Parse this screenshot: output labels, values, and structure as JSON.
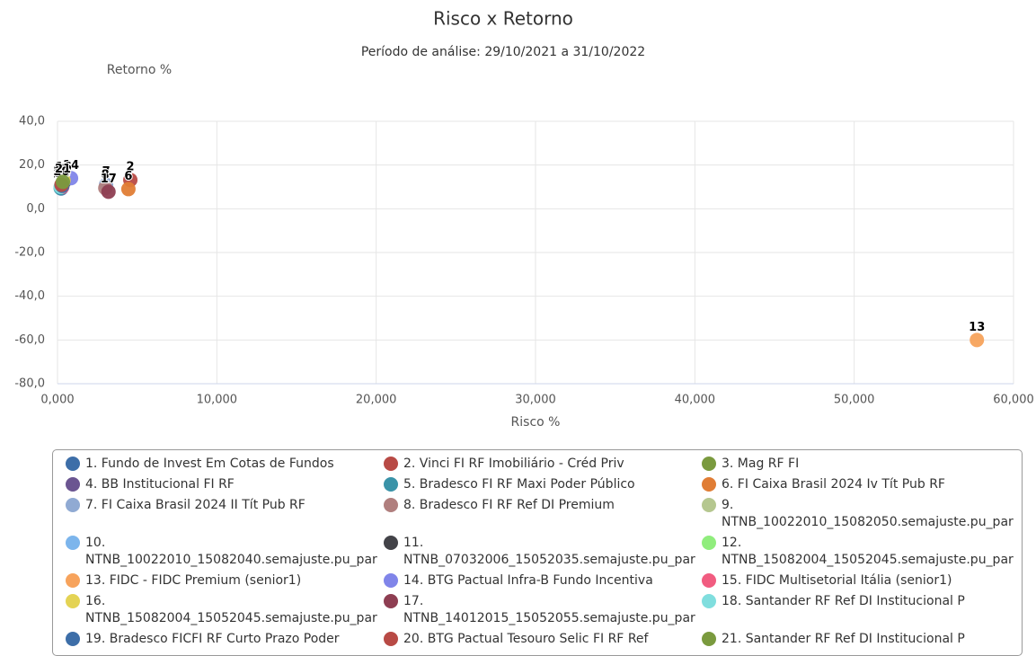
{
  "chart_data": {
    "type": "scatter",
    "title": "Risco x Retorno",
    "subtitle": "Período de análise: 29/10/2021 a 31/10/2022",
    "xlabel": "Risco %",
    "ylabel": "Retorno %",
    "xlim": [
      0,
      60000
    ],
    "ylim": [
      -80,
      40
    ],
    "xticks": [
      {
        "value": 0,
        "label": "0,000"
      },
      {
        "value": 10000,
        "label": "10,000"
      },
      {
        "value": 20000,
        "label": "20,000"
      },
      {
        "value": 30000,
        "label": "30,000"
      },
      {
        "value": 40000,
        "label": "40,000"
      },
      {
        "value": 50000,
        "label": "50,000"
      },
      {
        "value": 60000,
        "label": "60,000"
      }
    ],
    "yticks": [
      {
        "value": -80,
        "label": "-80,0"
      },
      {
        "value": -60,
        "label": "-60,0"
      },
      {
        "value": -40,
        "label": "-40,0"
      },
      {
        "value": -20,
        "label": "-20,0"
      },
      {
        "value": 0,
        "label": "0,0"
      },
      {
        "value": 20,
        "label": "20,0"
      },
      {
        "value": 40,
        "label": "40,0"
      }
    ],
    "grid": true,
    "series": [
      {
        "name": "1. Fundo de Invest Em Cotas de Fundos",
        "label": "1",
        "color": "#3d6ea8",
        "x": [
          230
        ],
        "values": [
          9.3
        ]
      },
      {
        "name": "2. Vinci FI RF Imobiliário - Créd Priv",
        "label": "2",
        "color": "#b84a45",
        "x": [
          4570
        ],
        "values": [
          13.2
        ]
      },
      {
        "name": "3. Mag RF FI",
        "label": "3",
        "color": "#7a9a3e",
        "x": [
          300
        ],
        "values": [
          11.5
        ]
      },
      {
        "name": "4. BB Institucional FI RF",
        "label": "4",
        "color": "#6b5591",
        "x": [
          250
        ],
        "values": [
          10
        ]
      },
      {
        "name": "5. Bradesco FI RF Maxi Poder Público",
        "label": "5",
        "color": "#3a93a8",
        "x": [
          200
        ],
        "values": [
          9.5
        ]
      },
      {
        "name": "6. FI Caixa Brasil 2024 Iv Tít Pub RF",
        "label": "6",
        "color": "#e07d35",
        "x": [
          4450
        ],
        "values": [
          9
        ]
      },
      {
        "name": "7. FI Caixa Brasil 2024 II Tít Pub RF",
        "label": "7",
        "color": "#90aad3",
        "x": [
          3050
        ],
        "values": [
          11
        ]
      },
      {
        "name": "8. Bradesco FI RF Ref DI Premium",
        "label": "8",
        "color": "#b07f7e",
        "x": [
          3000
        ],
        "values": [
          9.5
        ]
      },
      {
        "name": "9. NTNB_10022010_15082050.semajuste.pu_par",
        "label": "9",
        "color": "#b5c78f",
        "x": [
          400
        ],
        "values": [
          12
        ]
      },
      {
        "name": "10. NTNB_10022010_15082040.semajuste.pu_par",
        "label": "10",
        "color": "#7cb5ec",
        "x": [
          350
        ],
        "values": [
          12
        ]
      },
      {
        "name": "11. NTNB_07032006_15052035.semajuste.pu_par",
        "label": "11",
        "color": "#434348",
        "x": [
          420
        ],
        "values": [
          12.5
        ]
      },
      {
        "name": "12. NTNB_15082004_15052045.semajuste.pu_par",
        "label": "12",
        "color": "#90ed7d",
        "x": [
          380
        ],
        "values": [
          13
        ]
      },
      {
        "name": "13. FIDC - FIDC Premium (senior1)",
        "label": "13",
        "color": "#f7a35c",
        "x": [
          57700
        ],
        "values": [
          -60
        ]
      },
      {
        "name": "14. BTG Pactual Infra-B Fundo Incentiva",
        "label": "14",
        "color": "#8085e9",
        "x": [
          850
        ],
        "values": [
          14
        ]
      },
      {
        "name": "15. FIDC Multisetorial Itália (senior1)",
        "label": "15",
        "color": "#f15c80",
        "x": [
          300
        ],
        "values": [
          10
        ]
      },
      {
        "name": "16. NTNB_15082004_15052045.semajuste.pu_par",
        "label": "16",
        "color": "#e4d354",
        "x": [
          380
        ],
        "values": [
          13
        ]
      },
      {
        "name": "17. NTNB_14012015_15052055.semajuste.pu_par",
        "label": "17",
        "color": "#8e3e52",
        "x": [
          3200
        ],
        "values": [
          7.8
        ]
      },
      {
        "name": "18. Santander RF Ref DI Institucional P",
        "label": "18",
        "color": "#80dede",
        "x": [
          200
        ],
        "values": [
          10
        ]
      },
      {
        "name": "19. Bradesco FICFI RF Curto Prazo Poder",
        "label": "19",
        "color": "#3d6ea8",
        "x": [
          300
        ],
        "values": [
          10.5
        ]
      },
      {
        "name": "20. BTG Pactual Tesouro Selic FI RF Ref",
        "label": "20",
        "color": "#b84a45",
        "x": [
          250
        ],
        "values": [
          11
        ]
      },
      {
        "name": "21. Santander RF Ref DI Institucional P",
        "label": "21",
        "color": "#7a9a3e",
        "x": [
          340
        ],
        "values": [
          12.3
        ]
      }
    ]
  }
}
